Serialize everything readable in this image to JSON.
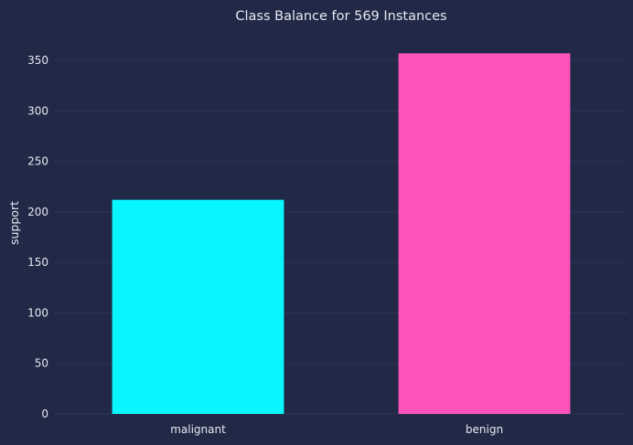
{
  "chart_data": {
    "type": "bar",
    "title": "Class Balance for 569 Instances",
    "xlabel": "",
    "ylabel": "support",
    "categories": [
      "malignant",
      "benign"
    ],
    "values": [
      212,
      357
    ],
    "colors": [
      "#08F7FE",
      "#FE53BB"
    ],
    "ylim": [
      0,
      370
    ],
    "yticks": [
      0,
      50,
      100,
      150,
      200,
      250,
      300,
      350
    ],
    "grid": true,
    "background": "#212946",
    "grid_color": "#2b3658",
    "text_color": "#e6e9f2"
  }
}
